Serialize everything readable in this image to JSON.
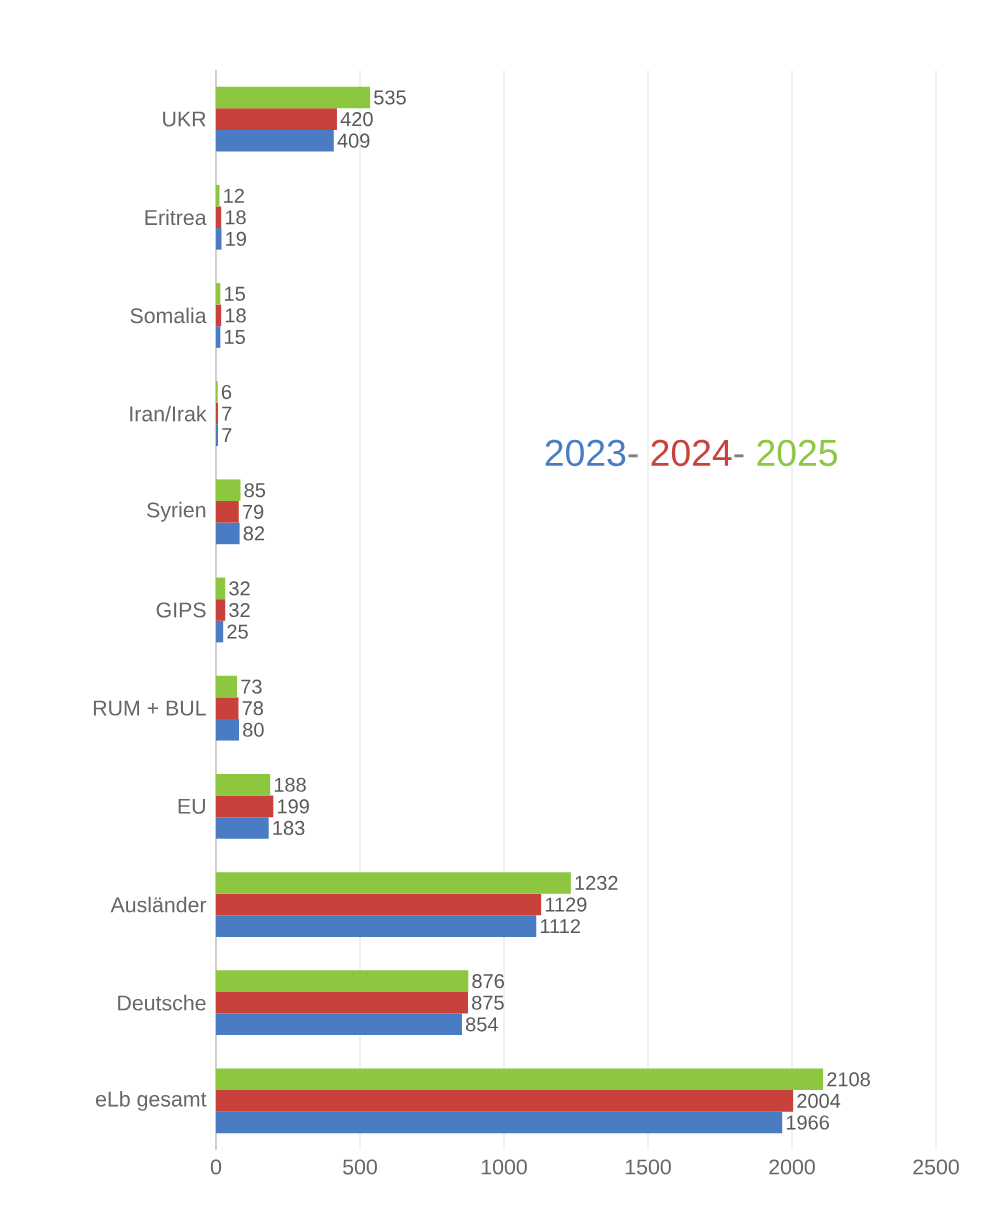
{
  "chart_data": {
    "type": "bar",
    "orientation": "horizontal",
    "categories": [
      "UKR",
      "Eritrea",
      "Somalia",
      "Iran/Irak",
      "Syrien",
      "GIPS",
      "RUM + BUL",
      "EU",
      "Ausländer",
      "Deutsche",
      "eLb gesamt"
    ],
    "series": [
      {
        "name": "2023",
        "color": "#4a7cc4",
        "values": [
          409,
          19,
          15,
          7,
          82,
          25,
          80,
          183,
          1112,
          854,
          1966
        ]
      },
      {
        "name": "2024",
        "color": "#c8413b",
        "values": [
          420,
          18,
          18,
          7,
          79,
          32,
          78,
          199,
          1129,
          875,
          2004
        ]
      },
      {
        "name": "2025",
        "color": "#8dc63f",
        "values": [
          535,
          12,
          15,
          6,
          85,
          32,
          73,
          188,
          1232,
          876,
          2108
        ]
      }
    ],
    "xlim": [
      0,
      2500
    ],
    "xticks": [
      0,
      500,
      1000,
      1500,
      2000,
      2500
    ],
    "annotations": [
      "-",
      "-"
    ],
    "grid": "x",
    "legend": "right",
    "data_labels": true
  }
}
